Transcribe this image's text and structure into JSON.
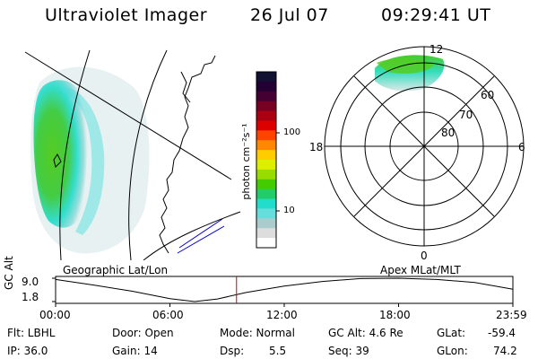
{
  "header": {
    "title": "Ultraviolet Imager",
    "date": "26 Jul 07",
    "time": "09:29:41 UT"
  },
  "colorbar": {
    "unit_label": "photon cm⁻²s⁻¹",
    "ticks": [
      "100",
      "10"
    ],
    "colors": [
      "#111133",
      "#220033",
      "#440033",
      "#770022",
      "#aa0011",
      "#dd0000",
      "#ff4400",
      "#ff8800",
      "#ffcc00",
      "#ddee00",
      "#99dd00",
      "#44cc00",
      "#22cc66",
      "#22ddcc",
      "#66dddd",
      "#aacccc",
      "#dddddd",
      "#ffffff"
    ]
  },
  "left_panel": {
    "caption": "Geographic Lat/Lon"
  },
  "right_panel": {
    "caption": "Apex MLat/MLT",
    "mlt_labels": {
      "top": "12",
      "left": "18",
      "right": "6",
      "bottom": "0"
    },
    "lat_labels": [
      "60",
      "70",
      "80"
    ]
  },
  "chart_data": {
    "type": "line",
    "title": "",
    "ylabel": "GC Alt",
    "yticks": [
      "9.0",
      "1.8"
    ],
    "ylim": [
      1.8,
      9.0
    ],
    "xticks": [
      "00:00",
      "06:00",
      "12:00",
      "18:00",
      "23:59"
    ],
    "x_hours": [
      0,
      2,
      4,
      6,
      7.3,
      8.5,
      10,
      12,
      14,
      16,
      18,
      20,
      22,
      24
    ],
    "series": [
      {
        "values": [
          8.6,
          6.9,
          5.0,
          2.7,
          1.8,
          2.6,
          4.6,
          6.6,
          8.0,
          8.9,
          9.0,
          8.6,
          7.7,
          5.6
        ]
      }
    ],
    "marker_hour": 9.495,
    "marker_color": "#cc0000"
  },
  "info": {
    "flt": "Flt: LBHL",
    "door": "Door: Open",
    "mode": "Mode: Normal",
    "gcalt": "GC Alt: 4.6 Re",
    "glat_label": "GLat:",
    "glat_value": "-59.4",
    "ip": "IP: 36.0",
    "gain": "Gain: 14",
    "dsp_label": "Dsp:",
    "dsp_value": "5.5",
    "seq": "Seq: 39",
    "glon_label": "GLon:",
    "glon_value": "74.2"
  }
}
